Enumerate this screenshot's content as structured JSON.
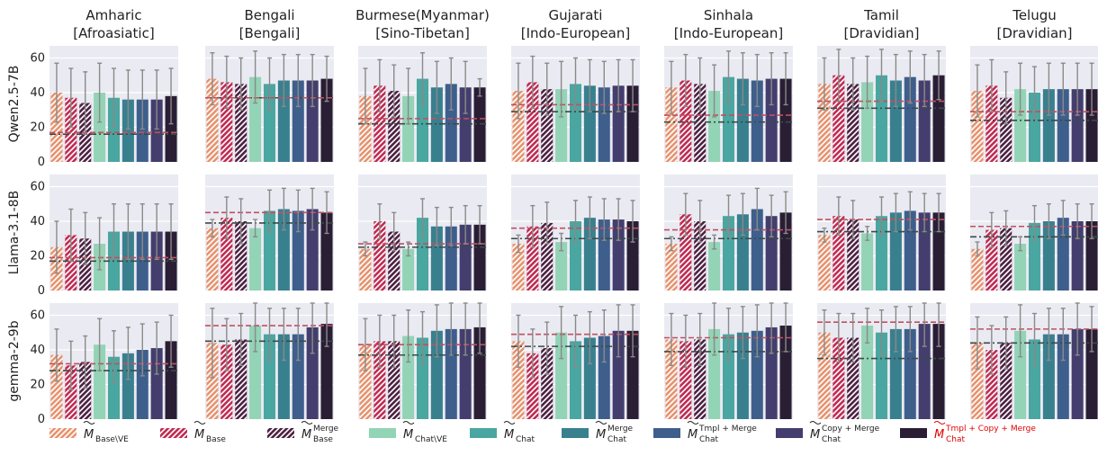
{
  "chart_data": {
    "type": "bar",
    "y_ticks": [
      0,
      20,
      40,
      60
    ],
    "ylim": [
      0,
      67
    ],
    "grid": true,
    "legend_position": "bottom",
    "languages": [
      {
        "title": "Amharic",
        "family": "[Afroasiatic]"
      },
      {
        "title": "Bengali",
        "family": "[Bengali]"
      },
      {
        "title": "Burmese(Myanmar)",
        "family": "[Sino-Tibetan]"
      },
      {
        "title": "Gujarati",
        "family": "[Indo-European]"
      },
      {
        "title": "Sinhala",
        "family": "[Indo-European]"
      },
      {
        "title": "Tamil",
        "family": "[Dravidian]"
      },
      {
        "title": "Telugu",
        "family": "[Dravidian]"
      }
    ],
    "models": [
      "Qwen2.5-7B",
      "Llama-3.1-8B",
      "gemma-2-9b"
    ],
    "series": [
      {
        "symbol": "M",
        "sub": "Base\\VE",
        "sup": "",
        "color": "#e69470",
        "hatch": true,
        "highlight": false
      },
      {
        "symbol": "M",
        "sub": "Base",
        "sup": "",
        "color": "#bf2d54",
        "hatch": true,
        "highlight": false
      },
      {
        "symbol": "M",
        "sub": "Base",
        "sup": "Merge",
        "color": "#4e2344",
        "hatch": true,
        "highlight": false
      },
      {
        "symbol": "M",
        "sub": "Chat\\VE",
        "sup": "",
        "color": "#93d3b6",
        "hatch": false,
        "highlight": false
      },
      {
        "symbol": "M",
        "sub": "Chat",
        "sup": "",
        "color": "#4aa6a0",
        "hatch": false,
        "highlight": false
      },
      {
        "symbol": "M",
        "sub": "Chat",
        "sup": "Merge",
        "color": "#39808f",
        "hatch": false,
        "highlight": false
      },
      {
        "symbol": "M",
        "sub": "Chat",
        "sup": "Tmpl + Merge",
        "color": "#3e5f8c",
        "hatch": false,
        "highlight": false
      },
      {
        "symbol": "M",
        "sub": "Chat",
        "sup": "Copy + Merge",
        "color": "#433e6d",
        "hatch": false,
        "highlight": false
      },
      {
        "symbol": "M",
        "sub": "Chat",
        "sup": "Tmpl + Copy + Merge",
        "color": "#2a1e35",
        "hatch": false,
        "highlight": true
      }
    ],
    "highlight_color": "#e00000",
    "reference_lines": {
      "base_color": "#c0505f",
      "chat_color": "#3c4a48"
    },
    "panels": [
      [
        {
          "values": [
            40,
            37,
            34,
            40,
            37,
            36,
            36,
            36,
            38
          ],
          "err": [
            17,
            17,
            18,
            17,
            17,
            17,
            17,
            17,
            16
          ],
          "ref_base": 17,
          "ref_chat": 16
        },
        {
          "values": [
            48,
            46,
            45,
            49,
            45,
            47,
            47,
            47,
            48
          ],
          "err": [
            15,
            15,
            15,
            15,
            15,
            15,
            15,
            15,
            13
          ],
          "ref_base": 37,
          "ref_chat": 37
        },
        {
          "values": [
            38,
            44,
            41,
            38,
            48,
            43,
            45,
            43,
            43
          ],
          "err": [
            16,
            15,
            15,
            16,
            15,
            15,
            15,
            15,
            5
          ],
          "ref_base": 25,
          "ref_chat": 22
        },
        {
          "values": [
            41,
            46,
            42,
            42,
            45,
            44,
            43,
            44,
            44
          ],
          "err": [
            16,
            15,
            15,
            16,
            15,
            15,
            15,
            15,
            15
          ],
          "ref_base": 33,
          "ref_chat": 29
        },
        {
          "values": [
            43,
            47,
            45,
            41,
            49,
            48,
            47,
            48,
            48
          ],
          "err": [
            15,
            15,
            15,
            15,
            15,
            15,
            15,
            15,
            15
          ],
          "ref_base": 27,
          "ref_chat": 23
        },
        {
          "values": [
            45,
            50,
            45,
            46,
            50,
            47,
            49,
            47,
            50
          ],
          "err": [
            15,
            15,
            15,
            15,
            15,
            15,
            15,
            15,
            14
          ],
          "ref_base": 35,
          "ref_chat": 31
        },
        {
          "values": [
            41,
            44,
            37,
            42,
            40,
            42,
            42,
            42,
            42
          ],
          "err": [
            15,
            15,
            15,
            15,
            15,
            15,
            15,
            15,
            15
          ],
          "ref_base": 29,
          "ref_chat": 24
        }
      ],
      [
        {
          "values": [
            25,
            32,
            30,
            27,
            34,
            34,
            34,
            34,
            34
          ],
          "err": [
            15,
            15,
            15,
            15,
            16,
            16,
            16,
            16,
            16
          ],
          "ref_base": 19,
          "ref_chat": 17
        },
        {
          "values": [
            36,
            42,
            40,
            36,
            46,
            47,
            46,
            47,
            45
          ],
          "err": [
            5,
            12,
            13,
            5,
            12,
            12,
            12,
            12,
            12
          ],
          "ref_base": 45,
          "ref_chat": 39
        },
        {
          "values": [
            24,
            40,
            34,
            24,
            42,
            37,
            37,
            38,
            38
          ],
          "err": [
            4,
            10,
            11,
            4,
            11,
            11,
            11,
            11,
            11
          ],
          "ref_base": 27,
          "ref_chat": 25
        },
        {
          "values": [
            27,
            37,
            39,
            28,
            40,
            42,
            41,
            41,
            40
          ],
          "err": [
            5,
            12,
            12,
            5,
            12,
            12,
            12,
            12,
            12
          ],
          "ref_base": 36,
          "ref_chat": 30
        },
        {
          "values": [
            27,
            44,
            40,
            28,
            43,
            44,
            47,
            43,
            45
          ],
          "err": [
            4,
            12,
            12,
            4,
            12,
            12,
            12,
            12,
            12
          ],
          "ref_base": 35,
          "ref_chat": 30
        },
        {
          "values": [
            32,
            43,
            41,
            33,
            43,
            45,
            46,
            45,
            45
          ],
          "err": [
            4,
            11,
            11,
            4,
            11,
            11,
            11,
            11,
            11
          ],
          "ref_base": 41,
          "ref_chat": 34
        },
        {
          "values": [
            24,
            35,
            36,
            27,
            39,
            40,
            42,
            40,
            40
          ],
          "err": [
            4,
            10,
            10,
            4,
            10,
            10,
            10,
            10,
            10
          ],
          "ref_base": 37,
          "ref_chat": 31
        }
      ],
      [
        {
          "values": [
            37,
            31,
            33,
            43,
            36,
            38,
            40,
            41,
            45
          ],
          "err": [
            15,
            14,
            15,
            15,
            15,
            15,
            15,
            15,
            15
          ],
          "ref_base": 32,
          "ref_chat": 28
        },
        {
          "values": [
            44,
            43,
            46,
            54,
            49,
            49,
            49,
            53,
            55
          ],
          "err": [
            20,
            15,
            15,
            15,
            15,
            15,
            15,
            15,
            13
          ],
          "ref_base": 54,
          "ref_chat": 45
        },
        {
          "values": [
            43,
            45,
            45,
            48,
            47,
            51,
            52,
            52,
            53
          ],
          "err": [
            15,
            15,
            15,
            15,
            15,
            15,
            15,
            15,
            15
          ],
          "ref_base": 43,
          "ref_chat": 37
        },
        {
          "values": [
            45,
            38,
            41,
            50,
            45,
            47,
            48,
            51,
            51
          ],
          "err": [
            15,
            14,
            15,
            15,
            15,
            15,
            15,
            15,
            15
          ],
          "ref_base": 49,
          "ref_chat": 42
        },
        {
          "values": [
            46,
            45,
            46,
            52,
            49,
            50,
            51,
            53,
            54
          ],
          "err": [
            15,
            15,
            15,
            15,
            15,
            15,
            15,
            15,
            15
          ],
          "ref_base": 47,
          "ref_chat": 39
        },
        {
          "values": [
            50,
            47,
            47,
            54,
            50,
            52,
            52,
            55,
            55
          ],
          "err": [
            13,
            14,
            14,
            10,
            13,
            13,
            13,
            13,
            13
          ],
          "ref_base": 56,
          "ref_chat": 35
        },
        {
          "values": [
            44,
            40,
            44,
            51,
            46,
            49,
            49,
            52,
            52
          ],
          "err": [
            15,
            14,
            15,
            15,
            15,
            15,
            15,
            15,
            13
          ],
          "ref_base": 52,
          "ref_chat": 44
        }
      ]
    ]
  }
}
